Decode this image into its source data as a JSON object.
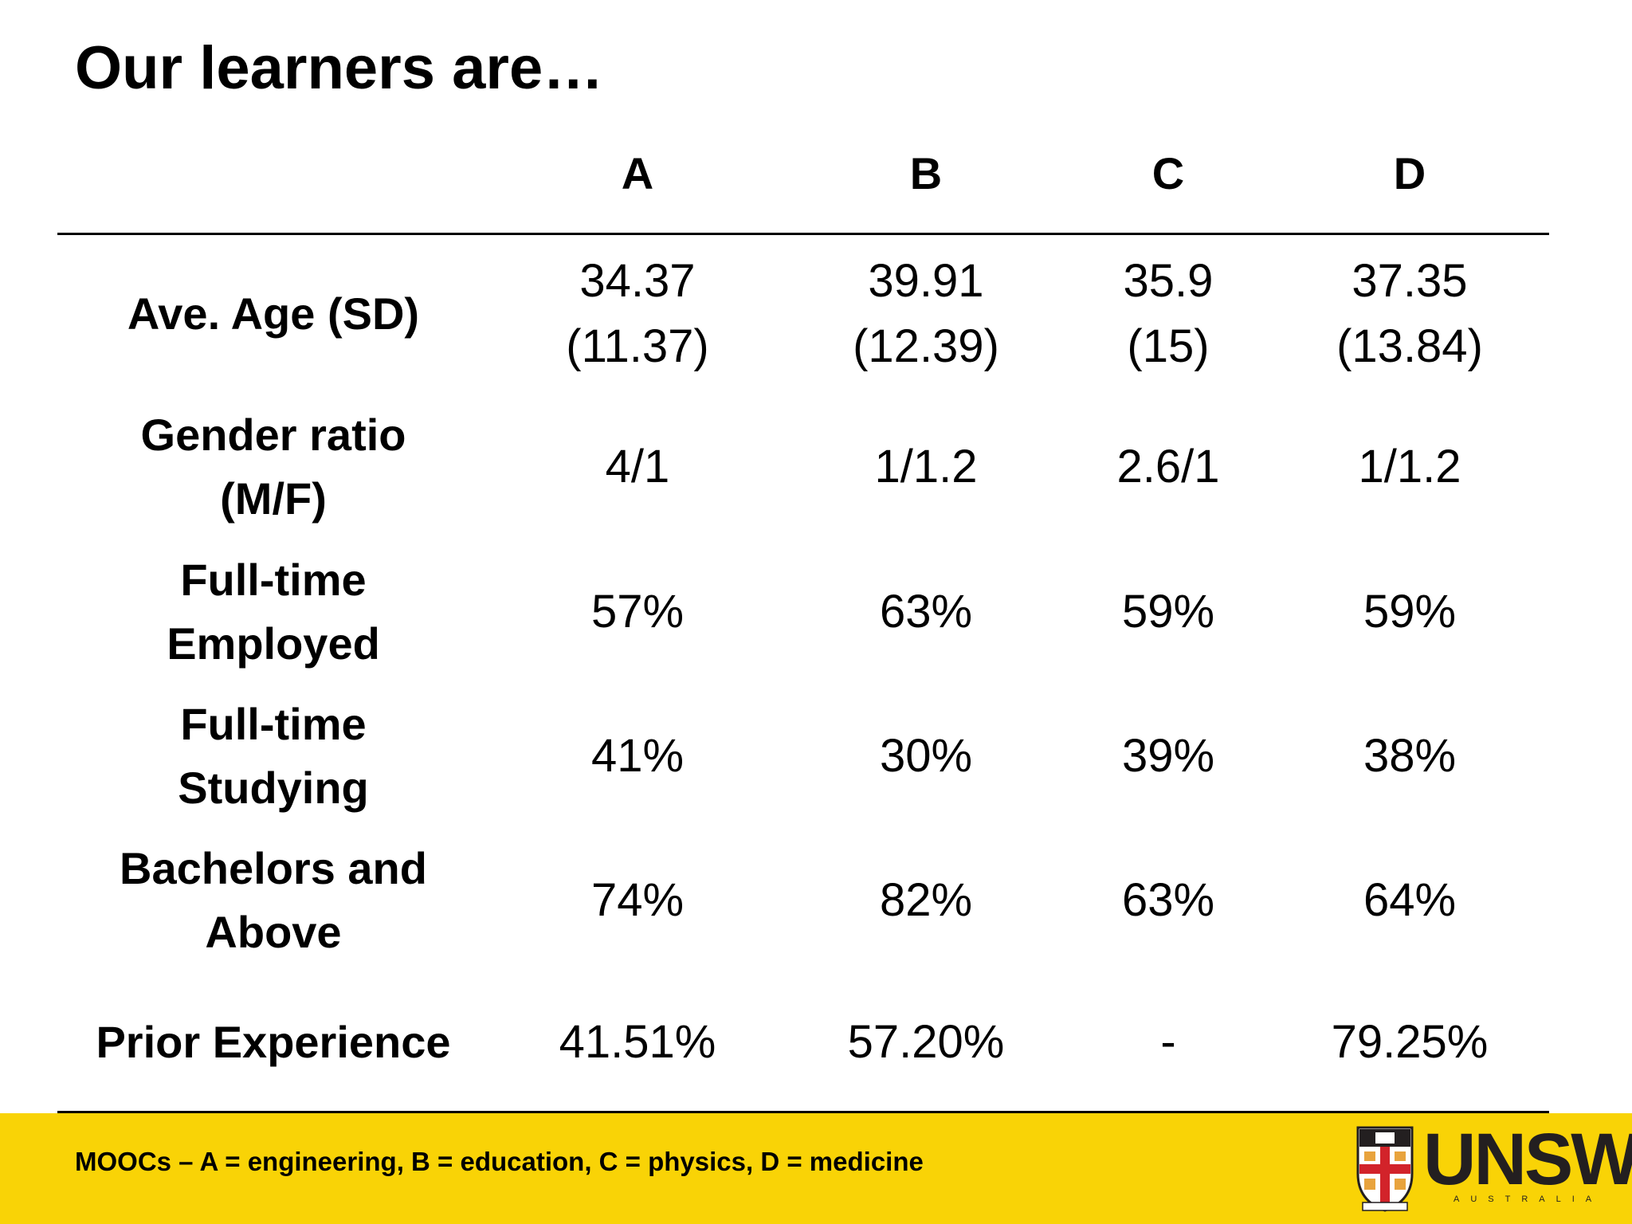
{
  "title": "Our learners are…",
  "table": {
    "columns": [
      "A",
      "B",
      "C",
      "D"
    ],
    "rows": [
      {
        "label": [
          "Ave. Age (SD)"
        ],
        "values": [
          [
            "34.37",
            "(11.37)"
          ],
          [
            "39.91",
            "(12.39)"
          ],
          [
            "35.9",
            "(15)"
          ],
          [
            "37.35",
            "(13.84)"
          ]
        ]
      },
      {
        "label": [
          "Gender ratio",
          "(M/F)"
        ],
        "values": [
          [
            "4/1"
          ],
          [
            "1/1.2"
          ],
          [
            "2.6/1"
          ],
          [
            "1/1.2"
          ]
        ]
      },
      {
        "label": [
          "Full-time",
          "Employed"
        ],
        "values": [
          [
            "57%"
          ],
          [
            "63%"
          ],
          [
            "59%"
          ],
          [
            "59%"
          ]
        ]
      },
      {
        "label": [
          "Full-time",
          "Studying"
        ],
        "values": [
          [
            "41%"
          ],
          [
            "30%"
          ],
          [
            "39%"
          ],
          [
            "38%"
          ]
        ]
      },
      {
        "label": [
          "Bachelors and",
          "Above"
        ],
        "values": [
          [
            "74%"
          ],
          [
            "82%"
          ],
          [
            "63%"
          ],
          [
            "64%"
          ]
        ]
      },
      {
        "label": [
          "Prior Experience"
        ],
        "values": [
          [
            "41.51%"
          ],
          [
            "57.20%"
          ],
          [
            "-"
          ],
          [
            "79.25%"
          ]
        ]
      }
    ]
  },
  "footer": {
    "note": "MOOCs – A = engineering, B = education, C = physics, D = medicine",
    "logo_text": "UNSW",
    "logo_subtext": "AUSTRALIA",
    "logo_icon": "unsw-crest-icon",
    "background_color": "#f9d306"
  }
}
